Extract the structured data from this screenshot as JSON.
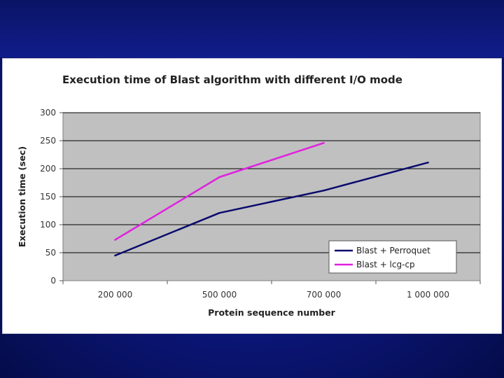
{
  "chart_data": {
    "type": "line",
    "title": "Execution time of Blast algorithm with different I/O mode",
    "xlabel": "Protein sequence number",
    "ylabel": "Execution time (sec)",
    "categories": [
      "200 000",
      "500 000",
      "700 000",
      "1 000 000"
    ],
    "yticks": [
      "0",
      "50",
      "100",
      "150",
      "200",
      "250",
      "300"
    ],
    "ylim": [
      0,
      300
    ],
    "grid": true,
    "legend_position": "bottom-right",
    "series": [
      {
        "name": "Blast + Perroquet",
        "color": "#0a0a6e",
        "values": [
          45,
          121,
          161,
          211
        ]
      },
      {
        "name": "Blast + lcg-cp",
        "color": "#e020e0",
        "values": [
          73,
          185,
          246,
          null
        ]
      }
    ]
  },
  "colors": {
    "plot_background": "#c0c0c0",
    "slide_background": "#0b1678"
  }
}
